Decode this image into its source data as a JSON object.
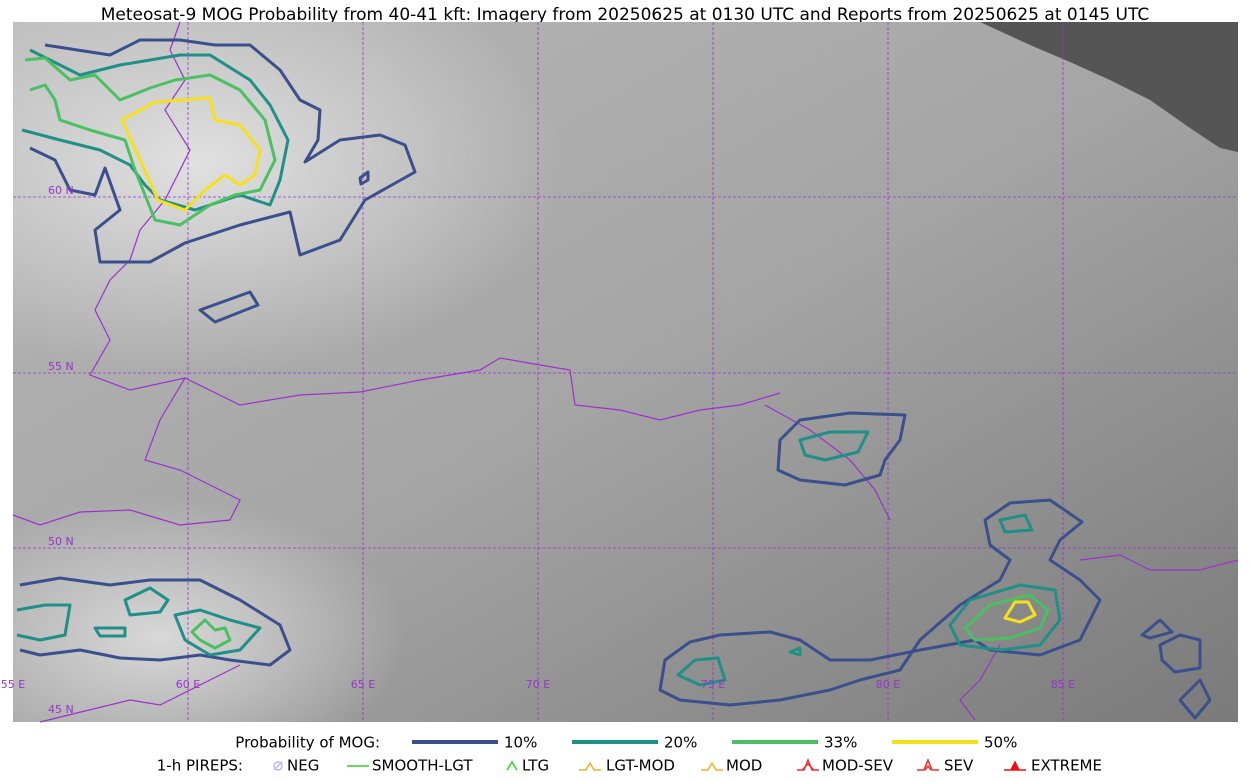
{
  "title": "Meteosat-9 MOG Probability from 40-41 kft: Imagery from 20250625 at 0130 UTC and Reports from 20250625 at 0145 UTC",
  "map": {
    "lat_labels": [
      "60 N",
      "55 N",
      "50 N",
      "45 N"
    ],
    "lon_labels": [
      "55 E",
      "60 E",
      "65 E",
      "70 E",
      "75 E",
      "80 E",
      "85 E"
    ]
  },
  "legend": {
    "probability": {
      "label": "Probability of MOG:",
      "items": [
        {
          "label": "10%",
          "color": "#3a4f8c"
        },
        {
          "label": "20%",
          "color": "#1f8f87"
        },
        {
          "label": "33%",
          "color": "#4ac063"
        },
        {
          "label": "50%",
          "color": "#f5e11b"
        }
      ]
    },
    "pireps": {
      "label": "1-h PIREPS:",
      "items": [
        {
          "label": "NEG",
          "color": "#b8b8f0"
        },
        {
          "label": "SMOOTH-LGT",
          "color": "#33cc33"
        },
        {
          "label": "LTG",
          "color": "#22dd22"
        },
        {
          "label": "LGT-MOD",
          "color": "#f0b020"
        },
        {
          "label": "MOD",
          "color": "#f0b020"
        },
        {
          "label": "MOD-SEV",
          "color": "#ee3030"
        },
        {
          "label": "SEV",
          "color": "#ee3030"
        },
        {
          "label": "EXTREME",
          "color": "#ee1010"
        }
      ]
    }
  }
}
